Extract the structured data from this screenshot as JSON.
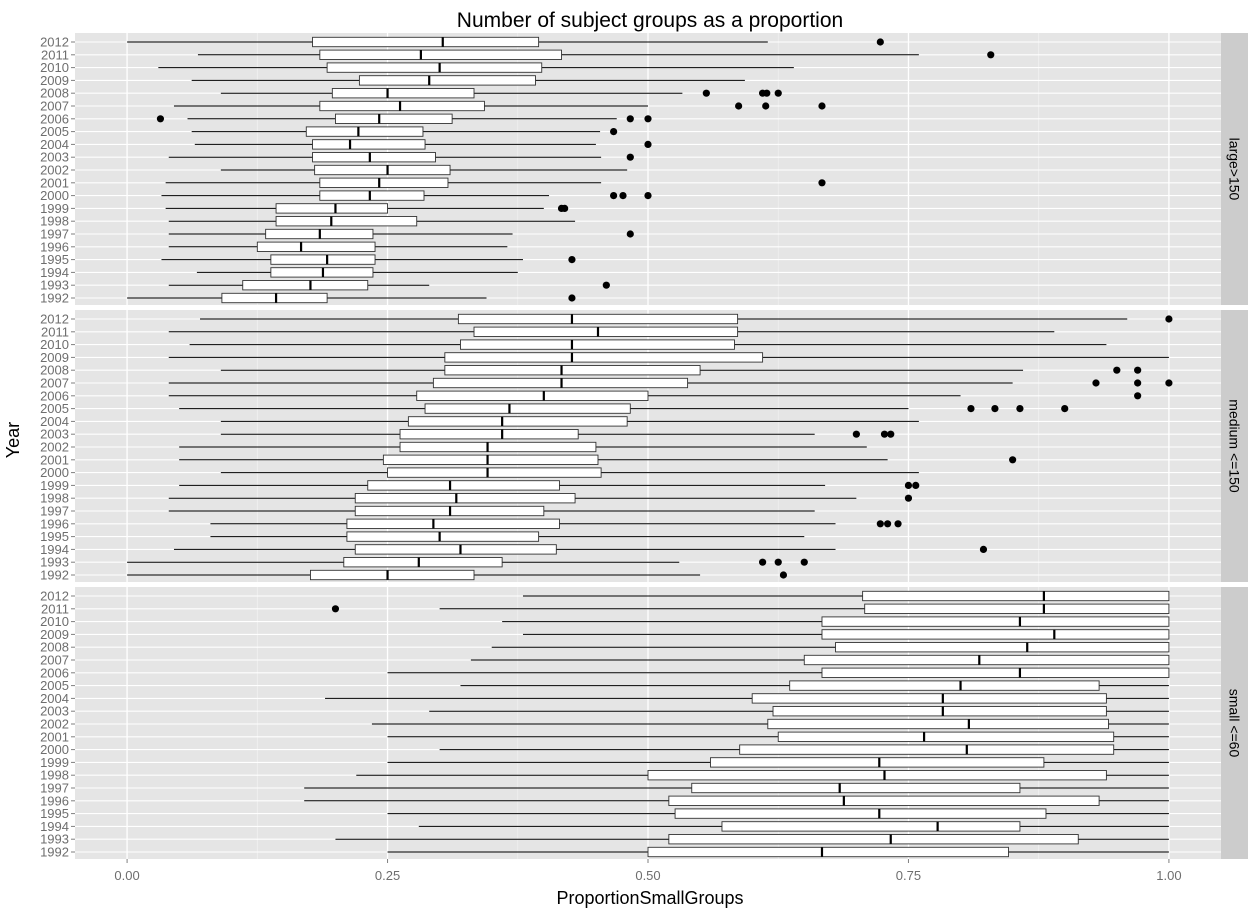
{
  "title": "Number of subject groups as a proportion",
  "xlabel": "ProportionSmallGroups",
  "ylabel": "Year",
  "colors": {
    "panel": "#e5e5e5",
    "strip": "#cccccc",
    "grid": "#ffffff",
    "box_fill": "#ffffff",
    "ink": "#000000"
  },
  "chart_data": {
    "type": "boxplot",
    "orientation": "horizontal",
    "xlim": [
      -0.05,
      1.05
    ],
    "x_ticks": [
      0,
      0.25,
      0.5,
      0.75,
      1
    ],
    "x_tick_labels": [
      "0.00",
      "0.25",
      "0.50",
      "0.75",
      "1.00"
    ],
    "years": [
      "2012",
      "2011",
      "2010",
      "2009",
      "2008",
      "2007",
      "2006",
      "2005",
      "2004",
      "2003",
      "2002",
      "2001",
      "2000",
      "1999",
      "1998",
      "1997",
      "1996",
      "1995",
      "1994",
      "1993",
      "1992"
    ],
    "facets": [
      {
        "label": "large>150",
        "boxes": [
          {
            "year": "2012",
            "min": 0.0,
            "q1": 0.178,
            "median": 0.303,
            "q3": 0.395,
            "max": 0.615,
            "outliers": [
              0.723
            ]
          },
          {
            "year": "2011",
            "min": 0.068,
            "q1": 0.185,
            "median": 0.282,
            "q3": 0.417,
            "max": 0.76,
            "outliers": [
              0.829
            ]
          },
          {
            "year": "2010",
            "min": 0.03,
            "q1": 0.192,
            "median": 0.3,
            "q3": 0.398,
            "max": 0.64,
            "outliers": []
          },
          {
            "year": "2009",
            "min": 0.062,
            "q1": 0.223,
            "median": 0.29,
            "q3": 0.392,
            "max": 0.593,
            "outliers": []
          },
          {
            "year": "2008",
            "min": 0.09,
            "q1": 0.197,
            "median": 0.25,
            "q3": 0.333,
            "max": 0.533,
            "outliers": [
              0.556,
              0.61,
              0.614,
              0.625
            ]
          },
          {
            "year": "2007",
            "min": 0.045,
            "q1": 0.185,
            "median": 0.262,
            "q3": 0.343,
            "max": 0.5,
            "outliers": [
              0.587,
              0.613,
              0.667
            ]
          },
          {
            "year": "2006",
            "min": 0.058,
            "q1": 0.2,
            "median": 0.242,
            "q3": 0.312,
            "max": 0.47,
            "outliers": [
              0.032,
              0.483,
              0.5
            ]
          },
          {
            "year": "2005",
            "min": 0.062,
            "q1": 0.172,
            "median": 0.222,
            "q3": 0.284,
            "max": 0.454,
            "outliers": [
              0.467
            ]
          },
          {
            "year": "2004",
            "min": 0.065,
            "q1": 0.178,
            "median": 0.214,
            "q3": 0.286,
            "max": 0.45,
            "outliers": [
              0.5
            ]
          },
          {
            "year": "2003",
            "min": 0.04,
            "q1": 0.178,
            "median": 0.233,
            "q3": 0.296,
            "max": 0.455,
            "outliers": [
              0.483
            ]
          },
          {
            "year": "2002",
            "min": 0.09,
            "q1": 0.18,
            "median": 0.25,
            "q3": 0.31,
            "max": 0.48,
            "outliers": []
          },
          {
            "year": "2001",
            "min": 0.037,
            "q1": 0.185,
            "median": 0.242,
            "q3": 0.308,
            "max": 0.455,
            "outliers": [
              0.667
            ]
          },
          {
            "year": "2000",
            "min": 0.033,
            "q1": 0.185,
            "median": 0.233,
            "q3": 0.285,
            "max": 0.405,
            "outliers": [
              0.467,
              0.476,
              0.5
            ]
          },
          {
            "year": "1999",
            "min": 0.037,
            "q1": 0.143,
            "median": 0.2,
            "q3": 0.25,
            "max": 0.4,
            "outliers": [
              0.417,
              0.42
            ]
          },
          {
            "year": "1998",
            "min": 0.04,
            "q1": 0.143,
            "median": 0.196,
            "q3": 0.278,
            "max": 0.43,
            "outliers": []
          },
          {
            "year": "1997",
            "min": 0.04,
            "q1": 0.133,
            "median": 0.185,
            "q3": 0.236,
            "max": 0.37,
            "outliers": [
              0.483
            ]
          },
          {
            "year": "1996",
            "min": 0.04,
            "q1": 0.125,
            "median": 0.167,
            "q3": 0.238,
            "max": 0.365,
            "outliers": []
          },
          {
            "year": "1995",
            "min": 0.033,
            "q1": 0.138,
            "median": 0.192,
            "q3": 0.238,
            "max": 0.38,
            "outliers": [
              0.427
            ]
          },
          {
            "year": "1994",
            "min": 0.067,
            "q1": 0.138,
            "median": 0.188,
            "q3": 0.236,
            "max": 0.375,
            "outliers": []
          },
          {
            "year": "1993",
            "min": 0.04,
            "q1": 0.111,
            "median": 0.176,
            "q3": 0.231,
            "max": 0.29,
            "outliers": [
              0.46
            ]
          },
          {
            "year": "1992",
            "min": 0.0,
            "q1": 0.091,
            "median": 0.143,
            "q3": 0.192,
            "max": 0.345,
            "outliers": [
              0.427
            ]
          }
        ]
      },
      {
        "label": "medium <=150",
        "boxes": [
          {
            "year": "2012",
            "min": 0.07,
            "q1": 0.318,
            "median": 0.427,
            "q3": 0.586,
            "max": 0.96,
            "outliers": [
              1.0
            ]
          },
          {
            "year": "2011",
            "min": 0.04,
            "q1": 0.333,
            "median": 0.452,
            "q3": 0.586,
            "max": 0.89,
            "outliers": []
          },
          {
            "year": "2010",
            "min": 0.06,
            "q1": 0.32,
            "median": 0.427,
            "q3": 0.583,
            "max": 0.94,
            "outliers": []
          },
          {
            "year": "2009",
            "min": 0.04,
            "q1": 0.305,
            "median": 0.427,
            "q3": 0.61,
            "max": 1.0,
            "outliers": []
          },
          {
            "year": "2008",
            "min": 0.09,
            "q1": 0.305,
            "median": 0.417,
            "q3": 0.55,
            "max": 0.86,
            "outliers": [
              0.95,
              0.97
            ]
          },
          {
            "year": "2007",
            "min": 0.04,
            "q1": 0.294,
            "median": 0.417,
            "q3": 0.538,
            "max": 0.85,
            "outliers": [
              0.93,
              0.97,
              1.0
            ]
          },
          {
            "year": "2006",
            "min": 0.04,
            "q1": 0.278,
            "median": 0.4,
            "q3": 0.5,
            "max": 0.8,
            "outliers": [
              0.97
            ]
          },
          {
            "year": "2005",
            "min": 0.05,
            "q1": 0.286,
            "median": 0.367,
            "q3": 0.483,
            "max": 0.75,
            "outliers": [
              0.81,
              0.833,
              0.857,
              0.9
            ]
          },
          {
            "year": "2004",
            "min": 0.09,
            "q1": 0.27,
            "median": 0.36,
            "q3": 0.48,
            "max": 0.76,
            "outliers": []
          },
          {
            "year": "2003",
            "min": 0.09,
            "q1": 0.262,
            "median": 0.36,
            "q3": 0.433,
            "max": 0.66,
            "outliers": [
              0.7,
              0.727,
              0.733
            ]
          },
          {
            "year": "2002",
            "min": 0.05,
            "q1": 0.262,
            "median": 0.346,
            "q3": 0.45,
            "max": 0.71,
            "outliers": []
          },
          {
            "year": "2001",
            "min": 0.05,
            "q1": 0.246,
            "median": 0.346,
            "q3": 0.452,
            "max": 0.73,
            "outliers": [
              0.85
            ]
          },
          {
            "year": "2000",
            "min": 0.09,
            "q1": 0.25,
            "median": 0.346,
            "q3": 0.455,
            "max": 0.76,
            "outliers": []
          },
          {
            "year": "1999",
            "min": 0.05,
            "q1": 0.231,
            "median": 0.31,
            "q3": 0.415,
            "max": 0.67,
            "outliers": [
              0.75,
              0.757
            ]
          },
          {
            "year": "1998",
            "min": 0.04,
            "q1": 0.219,
            "median": 0.316,
            "q3": 0.43,
            "max": 0.7,
            "outliers": [
              0.75
            ]
          },
          {
            "year": "1997",
            "min": 0.04,
            "q1": 0.219,
            "median": 0.31,
            "q3": 0.4,
            "max": 0.66,
            "outliers": []
          },
          {
            "year": "1996",
            "min": 0.08,
            "q1": 0.211,
            "median": 0.294,
            "q3": 0.415,
            "max": 0.68,
            "outliers": [
              0.723,
              0.73,
              0.74
            ]
          },
          {
            "year": "1995",
            "min": 0.08,
            "q1": 0.211,
            "median": 0.3,
            "q3": 0.395,
            "max": 0.65,
            "outliers": []
          },
          {
            "year": "1994",
            "min": 0.045,
            "q1": 0.219,
            "median": 0.32,
            "q3": 0.412,
            "max": 0.68,
            "outliers": [
              0.822
            ]
          },
          {
            "year": "1993",
            "min": 0.0,
            "q1": 0.208,
            "median": 0.28,
            "q3": 0.36,
            "max": 0.53,
            "outliers": [
              0.61,
              0.625,
              0.65
            ]
          },
          {
            "year": "1992",
            "min": 0.0,
            "q1": 0.176,
            "median": 0.25,
            "q3": 0.333,
            "max": 0.55,
            "outliers": [
              0.63
            ]
          }
        ]
      },
      {
        "label": "small <=60",
        "boxes": [
          {
            "year": "2012",
            "min": 0.38,
            "q1": 0.706,
            "median": 0.88,
            "q3": 1.0,
            "max": 1.0,
            "outliers": []
          },
          {
            "year": "2011",
            "min": 0.3,
            "q1": 0.708,
            "median": 0.88,
            "q3": 1.0,
            "max": 1.0,
            "outliers": [
              0.2
            ]
          },
          {
            "year": "2010",
            "min": 0.36,
            "q1": 0.667,
            "median": 0.857,
            "q3": 1.0,
            "max": 1.0,
            "outliers": []
          },
          {
            "year": "2009",
            "min": 0.38,
            "q1": 0.667,
            "median": 0.89,
            "q3": 1.0,
            "max": 1.0,
            "outliers": []
          },
          {
            "year": "2008",
            "min": 0.35,
            "q1": 0.68,
            "median": 0.864,
            "q3": 1.0,
            "max": 1.0,
            "outliers": []
          },
          {
            "year": "2007",
            "min": 0.33,
            "q1": 0.65,
            "median": 0.818,
            "q3": 1.0,
            "max": 1.0,
            "outliers": []
          },
          {
            "year": "2006",
            "min": 0.25,
            "q1": 0.667,
            "median": 0.857,
            "q3": 1.0,
            "max": 1.0,
            "outliers": []
          },
          {
            "year": "2005",
            "min": 0.32,
            "q1": 0.636,
            "median": 0.8,
            "q3": 0.933,
            "max": 1.0,
            "outliers": []
          },
          {
            "year": "2004",
            "min": 0.19,
            "q1": 0.6,
            "median": 0.783,
            "q3": 0.94,
            "max": 1.0,
            "outliers": []
          },
          {
            "year": "2003",
            "min": 0.29,
            "q1": 0.62,
            "median": 0.783,
            "q3": 0.94,
            "max": 1.0,
            "outliers": []
          },
          {
            "year": "2002",
            "min": 0.235,
            "q1": 0.615,
            "median": 0.808,
            "q3": 0.942,
            "max": 1.0,
            "outliers": []
          },
          {
            "year": "2001",
            "min": 0.25,
            "q1": 0.625,
            "median": 0.765,
            "q3": 0.947,
            "max": 1.0,
            "outliers": []
          },
          {
            "year": "2000",
            "min": 0.3,
            "q1": 0.588,
            "median": 0.806,
            "q3": 0.947,
            "max": 1.0,
            "outliers": []
          },
          {
            "year": "1999",
            "min": 0.25,
            "q1": 0.56,
            "median": 0.722,
            "q3": 0.88,
            "max": 1.0,
            "outliers": []
          },
          {
            "year": "1998",
            "min": 0.22,
            "q1": 0.5,
            "median": 0.727,
            "q3": 0.94,
            "max": 1.0,
            "outliers": []
          },
          {
            "year": "1997",
            "min": 0.17,
            "q1": 0.542,
            "median": 0.684,
            "q3": 0.857,
            "max": 1.0,
            "outliers": []
          },
          {
            "year": "1996",
            "min": 0.17,
            "q1": 0.52,
            "median": 0.688,
            "q3": 0.933,
            "max": 1.0,
            "outliers": []
          },
          {
            "year": "1995",
            "min": 0.25,
            "q1": 0.526,
            "median": 0.722,
            "q3": 0.882,
            "max": 1.0,
            "outliers": []
          },
          {
            "year": "1994",
            "min": 0.28,
            "q1": 0.571,
            "median": 0.778,
            "q3": 0.857,
            "max": 1.0,
            "outliers": []
          },
          {
            "year": "1993",
            "min": 0.2,
            "q1": 0.52,
            "median": 0.733,
            "q3": 0.913,
            "max": 1.0,
            "outliers": []
          },
          {
            "year": "1992",
            "min": 0.25,
            "q1": 0.5,
            "median": 0.667,
            "q3": 0.846,
            "max": 1.0,
            "outliers": []
          }
        ]
      }
    ],
    "grid": true
  }
}
